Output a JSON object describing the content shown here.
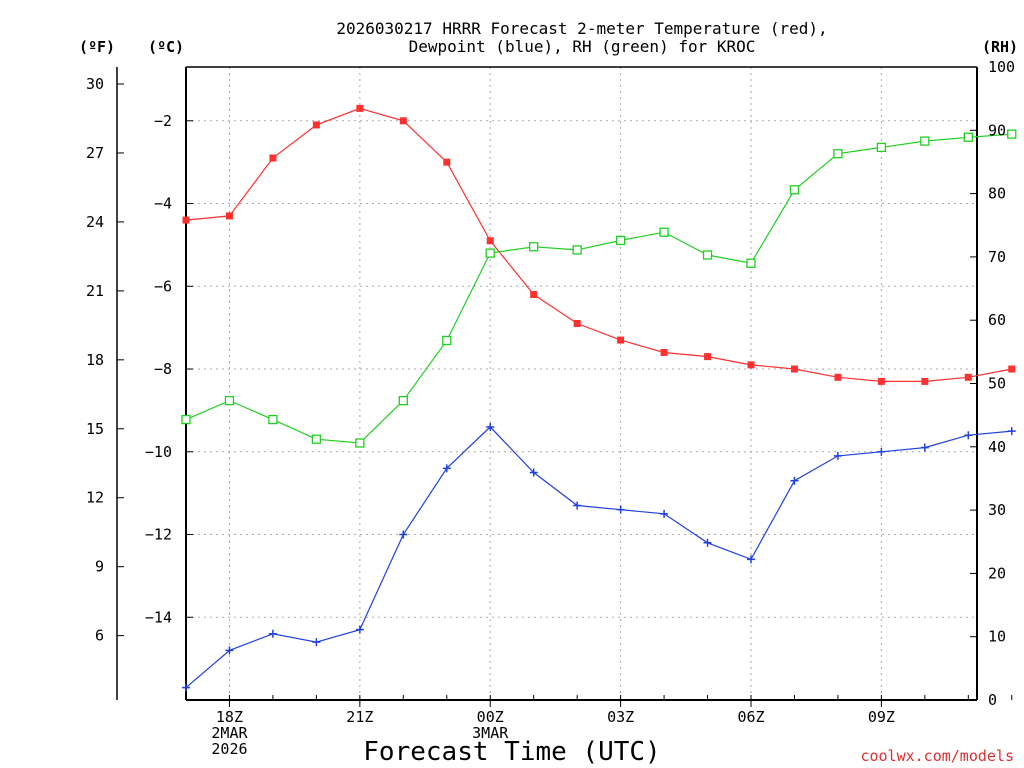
{
  "chart_data": {
    "type": "line",
    "title_line1": "2026030217 HRRR Forecast 2-meter Temperature (red),",
    "title_line2": "Dewpoint (blue), RH (green) for KROC",
    "xlabel": "Forecast Time (UTC)",
    "credit": "coolwx.com/models",
    "left_outer_unit": "(ºF)",
    "left_inner_unit": "(ºC)",
    "right_unit": "(RH)",
    "x": [
      17,
      18,
      19,
      20,
      21,
      22,
      23,
      24,
      25,
      26,
      27,
      28,
      29,
      30,
      31,
      32,
      33,
      34,
      35,
      36
    ],
    "xlim": [
      17,
      35.2
    ],
    "x_ticks": [
      {
        "x": 18,
        "lines": [
          "18Z",
          "2MAR",
          "2026"
        ]
      },
      {
        "x": 21,
        "lines": [
          "21Z"
        ]
      },
      {
        "x": 24,
        "lines": [
          "00Z",
          "3MAR"
        ]
      },
      {
        "x": 27,
        "lines": [
          "03Z"
        ]
      },
      {
        "x": 30,
        "lines": [
          "06Z"
        ]
      },
      {
        "x": 33,
        "lines": [
          "09Z"
        ]
      }
    ],
    "celsius_axis": {
      "ylim": [
        -16.0,
        -0.7
      ],
      "ticks": [
        -2,
        -4,
        -6,
        -8,
        -10,
        -12,
        -14
      ],
      "tick_labels": [
        "−2",
        "−4",
        "−6",
        "−8",
        "−10",
        "−12",
        "−14"
      ]
    },
    "fahrenheit_axis": {
      "ticks": [
        30,
        27,
        24,
        21,
        18,
        15,
        12,
        9,
        6
      ],
      "tick_labels": [
        "30",
        "27",
        "24",
        "21",
        "18",
        "15",
        "12",
        "9",
        "6"
      ]
    },
    "rh_axis": {
      "ylim": [
        0,
        100
      ],
      "ticks": [
        100,
        90,
        80,
        70,
        60,
        50,
        40,
        30,
        20,
        10,
        0
      ],
      "tick_labels": [
        "100",
        "90",
        "80",
        "70",
        "60",
        "50",
        "40",
        "30",
        "20",
        "10",
        "0"
      ]
    },
    "series": [
      {
        "name": "Temperature",
        "units": "°C",
        "color": "#ff3030",
        "marker": "filled-square",
        "values": [
          -4.4,
          -4.3,
          -2.9,
          -2.1,
          -1.7,
          -2.0,
          -3.0,
          -4.9,
          -6.2,
          -6.9,
          -7.3,
          -7.6,
          -7.7,
          -7.9,
          -8.0,
          -8.2,
          -8.3,
          -8.3,
          -8.2,
          -8.0
        ]
      },
      {
        "name": "Dewpoint",
        "units": "°C",
        "color": "#2040e0",
        "marker": "plus",
        "values": [
          -15.7,
          -14.8,
          -14.4,
          -14.6,
          -14.3,
          -12.0,
          -10.4,
          -9.4,
          -10.5,
          -11.3,
          -11.4,
          -11.5,
          -12.2,
          -12.6,
          -10.7,
          -10.1,
          -10.0,
          -9.9,
          -9.6,
          -9.5
        ]
      },
      {
        "name": "RH",
        "units": "%",
        "color": "#20d020",
        "marker": "open-square",
        "values": [
          44.3,
          47.3,
          44.3,
          41.2,
          40.6,
          47.3,
          56.8,
          70.6,
          71.6,
          71.1,
          72.6,
          73.9,
          70.3,
          69.0,
          80.6,
          86.3,
          87.3,
          88.3,
          88.9,
          89.4
        ]
      }
    ]
  }
}
